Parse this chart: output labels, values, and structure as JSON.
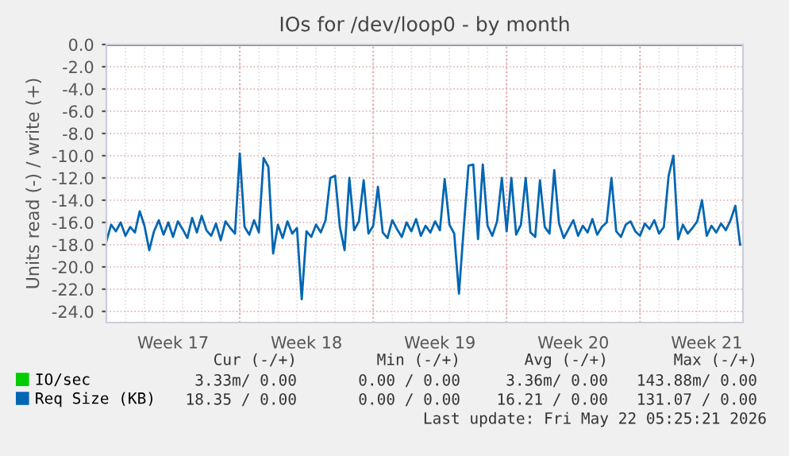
{
  "chart_data": {
    "type": "line",
    "title": "IOs for /dev/loop0 - by month",
    "ylabel": "Units read (-) / write (+)",
    "categories": [
      null,
      null,
      null,
      null,
      null,
      null,
      null,
      null,
      null,
      null,
      null,
      null,
      null,
      null,
      "Week 17",
      null,
      null,
      null,
      null,
      null,
      null,
      null,
      null,
      null,
      null,
      null,
      null,
      null,
      null,
      null,
      null,
      null,
      null,
      null,
      null,
      null,
      null,
      null,
      null,
      null,
      null,
      null,
      "Week 18",
      null,
      null,
      null,
      null,
      null,
      null,
      null,
      null,
      null,
      null,
      null,
      null,
      null,
      null,
      null,
      null,
      null,
      null,
      null,
      null,
      null,
      null,
      null,
      null,
      null,
      null,
      null,
      "Week 19",
      null,
      null,
      null,
      null,
      null,
      null,
      null,
      null,
      null,
      null,
      null,
      null,
      null,
      null,
      null,
      null,
      null,
      null,
      null,
      null,
      null,
      null,
      null,
      null,
      null,
      null,
      null,
      "Week 20",
      null,
      null,
      null,
      null,
      null,
      null,
      null,
      null,
      null,
      null,
      null,
      null,
      null,
      null,
      null,
      null,
      null,
      null,
      null,
      null,
      null,
      null,
      null,
      null,
      null,
      null,
      null,
      "Week 21",
      null,
      null,
      null,
      null,
      null,
      null,
      null
    ],
    "series": [
      {
        "name": "IO/sec",
        "color": "#00cc00",
        "values": [
          null,
          null,
          null,
          null,
          null,
          null,
          null,
          null,
          null,
          null,
          null,
          null,
          null,
          null,
          null,
          null,
          null,
          null,
          null,
          null,
          null,
          null,
          null,
          null,
          null,
          null,
          null,
          null,
          null,
          null,
          null,
          null,
          null,
          null,
          null,
          null,
          null,
          null,
          null,
          null,
          null,
          null,
          null,
          null,
          null,
          null,
          null,
          null,
          null,
          null,
          null,
          null,
          null,
          null,
          null,
          null,
          null,
          null,
          null,
          null,
          null,
          null,
          null,
          null,
          null,
          null,
          null,
          null,
          null,
          null,
          null,
          null,
          null,
          null,
          null,
          null,
          null,
          null,
          null,
          null,
          null,
          null,
          null,
          null,
          null,
          null,
          null,
          null,
          null,
          null,
          null,
          null,
          null,
          null,
          null,
          null,
          null,
          null,
          null,
          null,
          null,
          null,
          null,
          null,
          null,
          null,
          null,
          null,
          null,
          null,
          null,
          null,
          null,
          null,
          null,
          null,
          null,
          null,
          null,
          null,
          null,
          null,
          null,
          null,
          null,
          null,
          null,
          null,
          null,
          null,
          null,
          null,
          null,
          null
        ]
      },
      {
        "name": "Req Size (KB)",
        "color": "#0066b3",
        "values": [
          -17.7,
          -16.2,
          -16.8,
          -16.0,
          -17.2,
          -16.4,
          -16.9,
          -15.0,
          -16.3,
          -18.5,
          -16.8,
          -15.8,
          -17.1,
          -16.0,
          -17.3,
          -15.9,
          -16.6,
          -17.4,
          -15.6,
          -16.9,
          -15.4,
          -16.7,
          -17.2,
          -16.1,
          -17.6,
          -15.9,
          -16.5,
          -17.0,
          -9.8,
          -16.4,
          -17.1,
          -15.8,
          -16.9,
          -10.2,
          -11.0,
          -18.8,
          -16.2,
          -17.4,
          -15.9,
          -17.0,
          -16.5,
          -22.9,
          -16.8,
          -17.3,
          -16.2,
          -16.9,
          -15.8,
          -12.0,
          -11.8,
          -16.4,
          -18.5,
          -12.0,
          -16.7,
          -15.9,
          -12.2,
          -17.0,
          -16.3,
          -12.8,
          -16.9,
          -17.4,
          -15.8,
          -16.6,
          -17.3,
          -16.0,
          -16.8,
          -15.7,
          -17.2,
          -16.3,
          -16.9,
          -15.9,
          -16.7,
          -12.1,
          -16.2,
          -17.0,
          -22.4,
          -16.5,
          -10.9,
          -10.8,
          -17.5,
          -10.8,
          -16.3,
          -17.2,
          -15.9,
          -12.0,
          -16.8,
          -12.0,
          -17.1,
          -16.2,
          -12.0,
          -16.9,
          -17.3,
          -12.2,
          -16.4,
          -17.0,
          -11.3,
          -16.1,
          -17.4,
          -16.6,
          -15.8,
          -17.2,
          -16.3,
          -16.9,
          -15.7,
          -17.1,
          -16.4,
          -16.0,
          -12.0,
          -16.8,
          -17.3,
          -16.2,
          -15.9,
          -16.8,
          -17.2,
          -16.1,
          -16.6,
          -15.8,
          -17.0,
          -16.4,
          -11.8,
          -10.0,
          -17.5,
          -16.2,
          -17.0,
          -16.5,
          -15.9,
          -14.0,
          -17.2,
          -16.3,
          -16.9,
          -16.1,
          -16.7,
          -15.8,
          -14.5,
          -18.0
        ]
      }
    ],
    "ylim": [
      -25,
      0
    ],
    "yticks": [
      {
        "value": 0,
        "label": "0.0"
      },
      {
        "value": -2,
        "label": "-2.0"
      },
      {
        "value": -4,
        "label": "-4.0"
      },
      {
        "value": -6,
        "label": "-6.0"
      },
      {
        "value": -8,
        "label": "-8.0"
      },
      {
        "value": -10,
        "label": "-10.0"
      },
      {
        "value": -12,
        "label": "-12.0"
      },
      {
        "value": -14,
        "label": "-14.0"
      },
      {
        "value": -16,
        "label": "-16.0"
      },
      {
        "value": -18,
        "label": "-18.0"
      },
      {
        "value": -20,
        "label": "-20.0"
      },
      {
        "value": -22,
        "label": "-22.0"
      },
      {
        "value": -24,
        "label": "-24.0"
      }
    ],
    "ref_lines": [
      {
        "axis": "y",
        "value": 0,
        "color": "#000000",
        "line_style": "solid"
      }
    ],
    "grid": true,
    "legend": "bottom left",
    "line_style": "solid",
    "annotations": [
      "Cur (-/+)",
      "Min (-/+)",
      "Avg (-/+)",
      "Max (-/+)",
      "3.33m/ 0.00",
      "0.00 / 0.00",
      "3.36m/ 0.00",
      "143.88m/ 0.00",
      "18.35 / 0.00",
      "0.00 / 0.00",
      "16.21 / 0.00",
      "131.07 / 0.00",
      "Last update: Fri May 22 05:25:21 2026"
    ]
  }
}
